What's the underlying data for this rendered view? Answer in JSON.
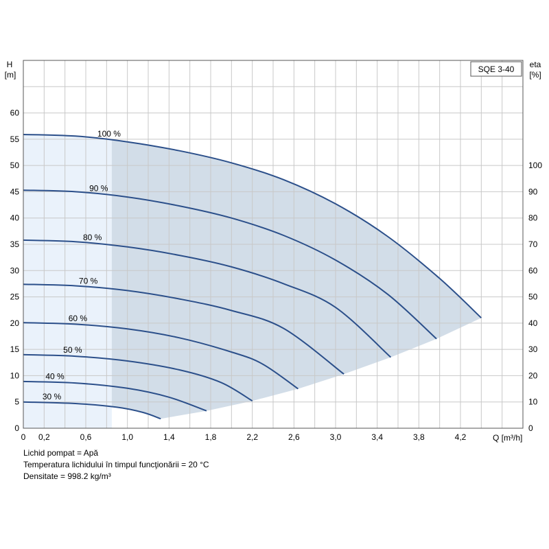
{
  "chart_data": {
    "type": "line",
    "title": "SQE 3-40",
    "x_axis": {
      "label": "Q [m³/h]",
      "range": [
        0,
        4.8
      ],
      "grid_step": 0.2,
      "tick_labels": [
        "0",
        "0,2",
        "0,6",
        "1,0",
        "1,4",
        "1,8",
        "2,2",
        "2,6",
        "3,0",
        "3,4",
        "3,8",
        "4,2"
      ],
      "tick_values": [
        0,
        0.2,
        0.6,
        1.0,
        1.4,
        1.8,
        2.2,
        2.6,
        3.0,
        3.4,
        3.8,
        4.2
      ]
    },
    "y_axis_left": {
      "label_line1": "H",
      "label_line2": "[m]",
      "range": [
        0,
        70
      ],
      "ticks": [
        0,
        5,
        10,
        15,
        20,
        25,
        30,
        35,
        40,
        45,
        50,
        55,
        60
      ]
    },
    "y_axis_right": {
      "label_line1": "eta",
      "label_line2": "[%]",
      "ticks": [
        0,
        10,
        20,
        30,
        40,
        50,
        60,
        70,
        80,
        90,
        100
      ],
      "ticks_H": [
        0,
        5,
        10,
        15,
        20,
        25,
        30,
        35,
        40,
        45,
        50
      ]
    },
    "grid": true,
    "low_flow_region_max_Q": 0.85,
    "colors": {
      "curve": "#2b4f8a",
      "operating_area": "#d2dde8",
      "low_flow_area": "#eaf2fb",
      "grid": "#c8c8c8"
    },
    "series": [
      {
        "name": "100 %",
        "points": [
          [
            0,
            55.9
          ],
          [
            0.5,
            55.6
          ],
          [
            1.0,
            54.5
          ],
          [
            1.5,
            52.8
          ],
          [
            2.0,
            50.5
          ],
          [
            2.5,
            47.3
          ],
          [
            3.0,
            42.7
          ],
          [
            3.5,
            36.5
          ],
          [
            4.0,
            28.5
          ],
          [
            4.4,
            21.0
          ]
        ]
      },
      {
        "name": "90 %",
        "points": [
          [
            0,
            45.3
          ],
          [
            0.5,
            45.0
          ],
          [
            1.0,
            44.0
          ],
          [
            1.5,
            42.3
          ],
          [
            2.0,
            40.0
          ],
          [
            2.5,
            36.7
          ],
          [
            3.0,
            32.0
          ],
          [
            3.5,
            25.5
          ],
          [
            3.97,
            17.0
          ]
        ]
      },
      {
        "name": "80 %",
        "points": [
          [
            0,
            35.8
          ],
          [
            0.5,
            35.5
          ],
          [
            1.0,
            34.5
          ],
          [
            1.5,
            32.9
          ],
          [
            2.0,
            30.7
          ],
          [
            2.5,
            27.5
          ],
          [
            3.0,
            23.0
          ],
          [
            3.53,
            13.5
          ]
        ]
      },
      {
        "name": "70 %",
        "points": [
          [
            0,
            27.4
          ],
          [
            0.5,
            27.1
          ],
          [
            1.0,
            26.2
          ],
          [
            1.5,
            24.6
          ],
          [
            2.0,
            22.4
          ],
          [
            2.5,
            19.0
          ],
          [
            3.08,
            10.3
          ]
        ]
      },
      {
        "name": "60 %",
        "points": [
          [
            0,
            20.1
          ],
          [
            0.5,
            19.8
          ],
          [
            1.0,
            18.9
          ],
          [
            1.5,
            17.2
          ],
          [
            2.0,
            14.5
          ],
          [
            2.3,
            12.2
          ],
          [
            2.64,
            7.5
          ]
        ]
      },
      {
        "name": "50 %",
        "points": [
          [
            0,
            14.0
          ],
          [
            0.5,
            13.7
          ],
          [
            1.0,
            12.8
          ],
          [
            1.5,
            11.1
          ],
          [
            1.9,
            8.7
          ],
          [
            2.2,
            5.2
          ]
        ]
      },
      {
        "name": "40 %",
        "points": [
          [
            0,
            8.9
          ],
          [
            0.5,
            8.6
          ],
          [
            1.0,
            7.6
          ],
          [
            1.4,
            5.9
          ],
          [
            1.76,
            3.3
          ]
        ]
      },
      {
        "name": "30 %",
        "points": [
          [
            0,
            5.0
          ],
          [
            0.5,
            4.7
          ],
          [
            0.9,
            4.0
          ],
          [
            1.15,
            3.0
          ],
          [
            1.32,
            1.8
          ]
        ]
      }
    ],
    "label_positions_Q": [
      0.85,
      0.75,
      0.69,
      0.65,
      0.55,
      0.5,
      0.33,
      0.3
    ]
  },
  "notes": {
    "line1": "Lichid pompat = Apă",
    "line2": "Temperatura lichidului în timpul funcţionării = 20 °C",
    "line3": "Densitate = 998.2 kg/m³"
  }
}
